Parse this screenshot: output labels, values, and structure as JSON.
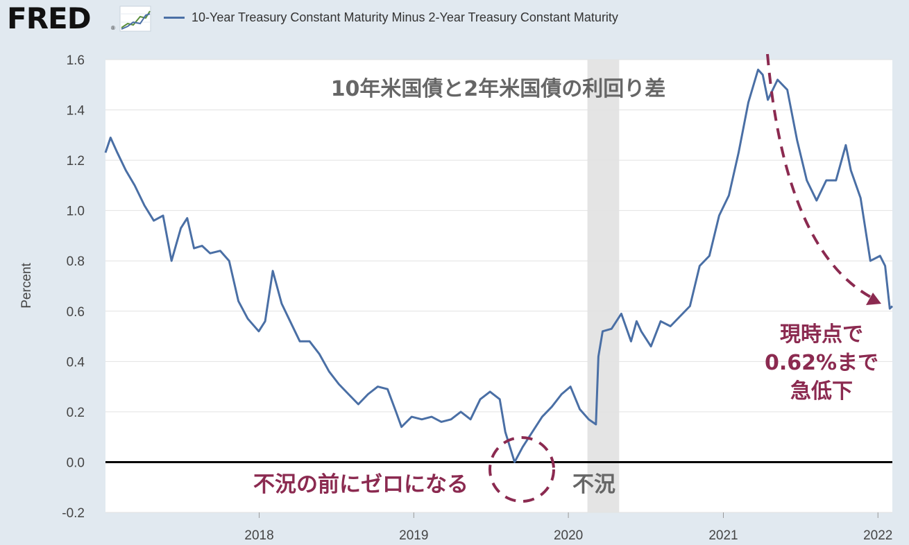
{
  "header": {
    "logo": "FRED",
    "logo_mark": "®",
    "logo_icon": "line-chart-icon",
    "legend_label": "10-Year Treasury Constant Maturity Minus 2-Year Treasury Constant Maturity",
    "legend_color": "#4a6fa5"
  },
  "chart_data": {
    "type": "line",
    "title": "",
    "ylabel": "Percent",
    "xlabel": "",
    "ylim": [
      -0.2,
      1.6
    ],
    "xlim": [
      "2017-01-03",
      "2022-02-04"
    ],
    "grid": true,
    "y_ticks": [
      "1.6",
      "1.4",
      "1.2",
      "1.0",
      "0.8",
      "0.6",
      "0.4",
      "0.2",
      "0.0",
      "-0.2"
    ],
    "x_ticks": [
      "2018",
      "2019",
      "2020",
      "2021",
      "2022"
    ],
    "recession": {
      "start": "2020-02-15",
      "end": "2020-04-30",
      "color": "#e4e4e4"
    },
    "zero_line": 0.0,
    "series": [
      {
        "color": "#4a6fa5",
        "x": [
          "2017-01-03",
          "2017-01-15",
          "2017-01-31",
          "2017-02-20",
          "2017-03-13",
          "2017-04-05",
          "2017-04-27",
          "2017-05-19",
          "2017-06-08",
          "2017-06-30",
          "2017-07-15",
          "2017-07-31",
          "2017-08-19",
          "2017-09-07",
          "2017-10-01",
          "2017-10-22",
          "2017-11-13",
          "2017-12-05",
          "2017-12-31",
          "2018-01-15",
          "2018-02-02",
          "2018-02-23",
          "2018-03-15",
          "2018-04-07",
          "2018-04-30",
          "2018-05-23",
          "2018-06-15",
          "2018-07-08",
          "2018-07-31",
          "2018-08-23",
          "2018-09-15",
          "2018-10-08",
          "2018-10-31",
          "2018-11-20",
          "2018-12-03",
          "2018-12-27",
          "2019-01-20",
          "2019-02-12",
          "2019-03-07",
          "2019-03-30",
          "2019-04-22",
          "2019-05-15",
          "2019-06-07",
          "2019-06-30",
          "2019-07-23",
          "2019-08-05",
          "2019-08-27",
          "2019-09-15",
          "2019-10-08",
          "2019-10-31",
          "2019-11-23",
          "2019-12-16",
          "2020-01-06",
          "2020-01-28",
          "2020-02-18",
          "2020-03-06",
          "2020-03-12",
          "2020-03-22",
          "2020-04-12",
          "2020-05-05",
          "2020-05-28",
          "2020-06-10",
          "2020-06-21",
          "2020-07-14",
          "2020-08-06",
          "2020-08-29",
          "2020-09-21",
          "2020-10-14",
          "2020-11-06",
          "2020-11-29",
          "2020-12-22",
          "2021-01-14",
          "2021-02-06",
          "2021-03-01",
          "2021-03-24",
          "2021-04-04",
          "2021-04-16",
          "2021-05-09",
          "2021-06-01",
          "2021-06-24",
          "2021-07-17",
          "2021-08-09",
          "2021-09-01",
          "2021-09-24",
          "2021-10-17",
          "2021-10-29",
          "2021-11-21",
          "2021-12-14",
          "2022-01-06",
          "2022-01-18",
          "2022-01-29",
          "2022-02-04"
        ],
        "values": [
          1.23,
          1.29,
          1.23,
          1.16,
          1.1,
          1.02,
          0.96,
          0.98,
          0.8,
          0.93,
          0.97,
          0.85,
          0.86,
          0.83,
          0.84,
          0.8,
          0.64,
          0.57,
          0.52,
          0.56,
          0.76,
          0.63,
          0.56,
          0.48,
          0.48,
          0.43,
          0.36,
          0.31,
          0.27,
          0.23,
          0.27,
          0.3,
          0.29,
          0.2,
          0.14,
          0.18,
          0.17,
          0.18,
          0.16,
          0.17,
          0.2,
          0.17,
          0.25,
          0.28,
          0.25,
          0.12,
          0.0,
          0.06,
          0.12,
          0.18,
          0.22,
          0.27,
          0.3,
          0.21,
          0.17,
          0.15,
          0.42,
          0.52,
          0.53,
          0.59,
          0.48,
          0.56,
          0.52,
          0.46,
          0.56,
          0.54,
          0.58,
          0.62,
          0.78,
          0.82,
          0.98,
          1.06,
          1.23,
          1.43,
          1.56,
          1.54,
          1.44,
          1.52,
          1.48,
          1.28,
          1.12,
          1.04,
          1.12,
          1.12,
          1.26,
          1.16,
          1.05,
          0.8,
          0.82,
          0.78,
          0.61,
          0.62
        ]
      }
    ],
    "annotations": [
      {
        "text": "10年米国債と2年米国債の利回り差",
        "color": "#666666",
        "at": "title"
      },
      {
        "text": "不況の前にゼロになる",
        "color": "#8b2a50",
        "at": "2019-08-20"
      },
      {
        "text": "不況",
        "color": "#666666",
        "at": "2020-03-20"
      },
      {
        "lines": [
          "現時点で",
          "0.62%まで",
          "急低下"
        ],
        "color": "#8b2a50",
        "at": "2022-01"
      }
    ]
  }
}
